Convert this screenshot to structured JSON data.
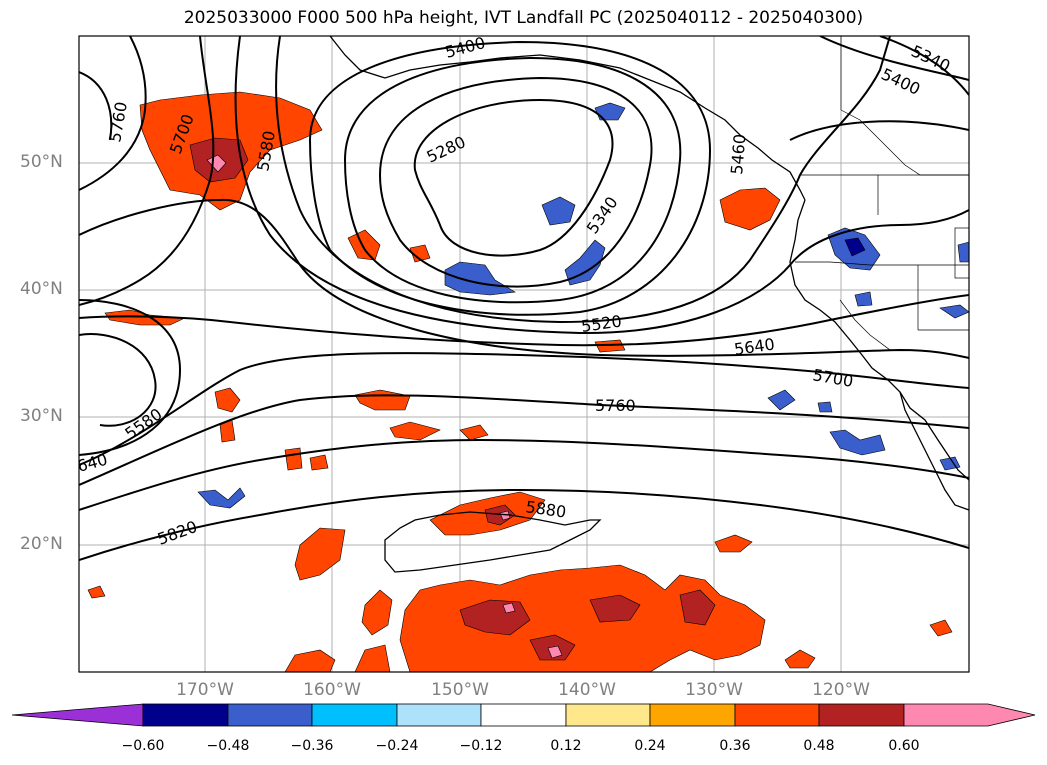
{
  "title": "2025033000 F000 500 hPa height, IVT Landfall PC (2025040112 - 2025040300)",
  "map": {
    "lat_labels": [
      "50°N",
      "40°N",
      "30°N",
      "20°N"
    ],
    "lon_labels": [
      "170°W",
      "160°W",
      "150°W",
      "140°W",
      "130°W",
      "120°W"
    ],
    "contour_labels": [
      "5400",
      "5340",
      "5400",
      "5760",
      "5700",
      "5580",
      "5280",
      "5340",
      "5520",
      "5640",
      "5700",
      "5760",
      "5580",
      "640",
      "5880",
      "5820",
      "5460"
    ],
    "colors": {
      "land_outline": "#000000",
      "gridline": "#b0b0b0",
      "contour": "#000000"
    }
  },
  "colorbar": {
    "ticks": [
      "−0.60",
      "−0.48",
      "−0.36",
      "−0.24",
      "−0.12",
      "0.12",
      "0.24",
      "0.36",
      "0.48",
      "0.60"
    ],
    "colors": [
      "#9b30d6",
      "#00008b",
      "#3a5fcd",
      "#00bfff",
      "#aee2fa",
      "#ffffff",
      "#ffe88c",
      "#ffa500",
      "#ff4500",
      "#b22222",
      "#ff88b0"
    ]
  }
}
